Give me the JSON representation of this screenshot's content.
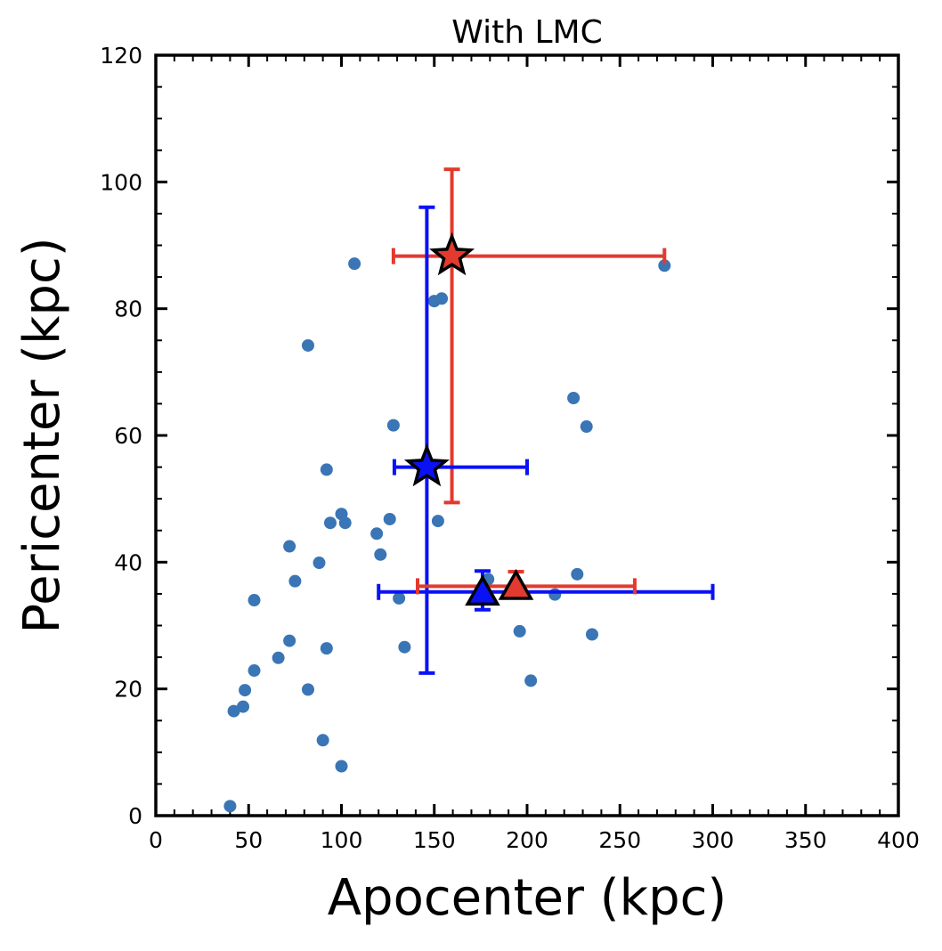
{
  "chart_data": {
    "type": "scatter",
    "title": "With LMC",
    "xlabel": "Apocenter (kpc)",
    "ylabel": "Pericenter (kpc)",
    "xlim": [
      0,
      400
    ],
    "ylim": [
      0,
      120
    ],
    "xticks": [
      0,
      50,
      100,
      150,
      200,
      250,
      300,
      350,
      400
    ],
    "yticks": [
      0,
      20,
      40,
      60,
      80,
      100,
      120
    ],
    "grid": false,
    "colors": {
      "points": "#3a75b5",
      "red": "#e23a2e",
      "blue": "#0a12f5",
      "outline": "#000000"
    },
    "points": [
      {
        "x": 40,
        "y": 1.5
      },
      {
        "x": 42,
        "y": 16.5
      },
      {
        "x": 47,
        "y": 17.2
      },
      {
        "x": 48,
        "y": 19.8
      },
      {
        "x": 53,
        "y": 34.0
      },
      {
        "x": 53,
        "y": 22.9
      },
      {
        "x": 66,
        "y": 24.9
      },
      {
        "x": 72,
        "y": 42.5
      },
      {
        "x": 72,
        "y": 27.6
      },
      {
        "x": 75,
        "y": 37.0
      },
      {
        "x": 82,
        "y": 74.2
      },
      {
        "x": 82,
        "y": 19.9
      },
      {
        "x": 88,
        "y": 39.9
      },
      {
        "x": 90,
        "y": 11.9
      },
      {
        "x": 92,
        "y": 54.6
      },
      {
        "x": 92,
        "y": 26.4
      },
      {
        "x": 94,
        "y": 46.2
      },
      {
        "x": 100,
        "y": 47.6
      },
      {
        "x": 100,
        "y": 7.8
      },
      {
        "x": 102,
        "y": 46.2
      },
      {
        "x": 107,
        "y": 87.1
      },
      {
        "x": 119,
        "y": 44.5
      },
      {
        "x": 121,
        "y": 41.2
      },
      {
        "x": 126,
        "y": 46.8
      },
      {
        "x": 128,
        "y": 61.6
      },
      {
        "x": 131,
        "y": 34.3
      },
      {
        "x": 134,
        "y": 26.6
      },
      {
        "x": 150,
        "y": 81.2
      },
      {
        "x": 152,
        "y": 46.5
      },
      {
        "x": 154,
        "y": 81.6
      },
      {
        "x": 179,
        "y": 37.3
      },
      {
        "x": 196,
        "y": 29.1
      },
      {
        "x": 202,
        "y": 21.3
      },
      {
        "x": 215,
        "y": 34.9
      },
      {
        "x": 225,
        "y": 65.9
      },
      {
        "x": 227,
        "y": 38.1
      },
      {
        "x": 232,
        "y": 61.4
      },
      {
        "x": 235,
        "y": 28.6
      },
      {
        "x": 274,
        "y": 86.8
      }
    ],
    "highlights": [
      {
        "marker": "star",
        "color": "red",
        "x": 159.5,
        "y": 88.3,
        "x_err": [
          128,
          274
        ],
        "y_err": [
          49.4,
          102
        ]
      },
      {
        "marker": "star",
        "color": "blue",
        "x": 146,
        "y": 55.0,
        "x_err": [
          128.5,
          200
        ],
        "y_err": [
          22.5,
          96
        ]
      },
      {
        "marker": "triangle",
        "color": "blue",
        "x": 176,
        "y": 35.3,
        "x_err": [
          120,
          300
        ],
        "y_err": [
          32.5,
          38.6
        ]
      },
      {
        "marker": "triangle",
        "color": "red",
        "x": 194,
        "y": 36.2,
        "x_err": [
          141,
          258
        ],
        "y_err": [
          35.2,
          38.5
        ]
      }
    ]
  }
}
